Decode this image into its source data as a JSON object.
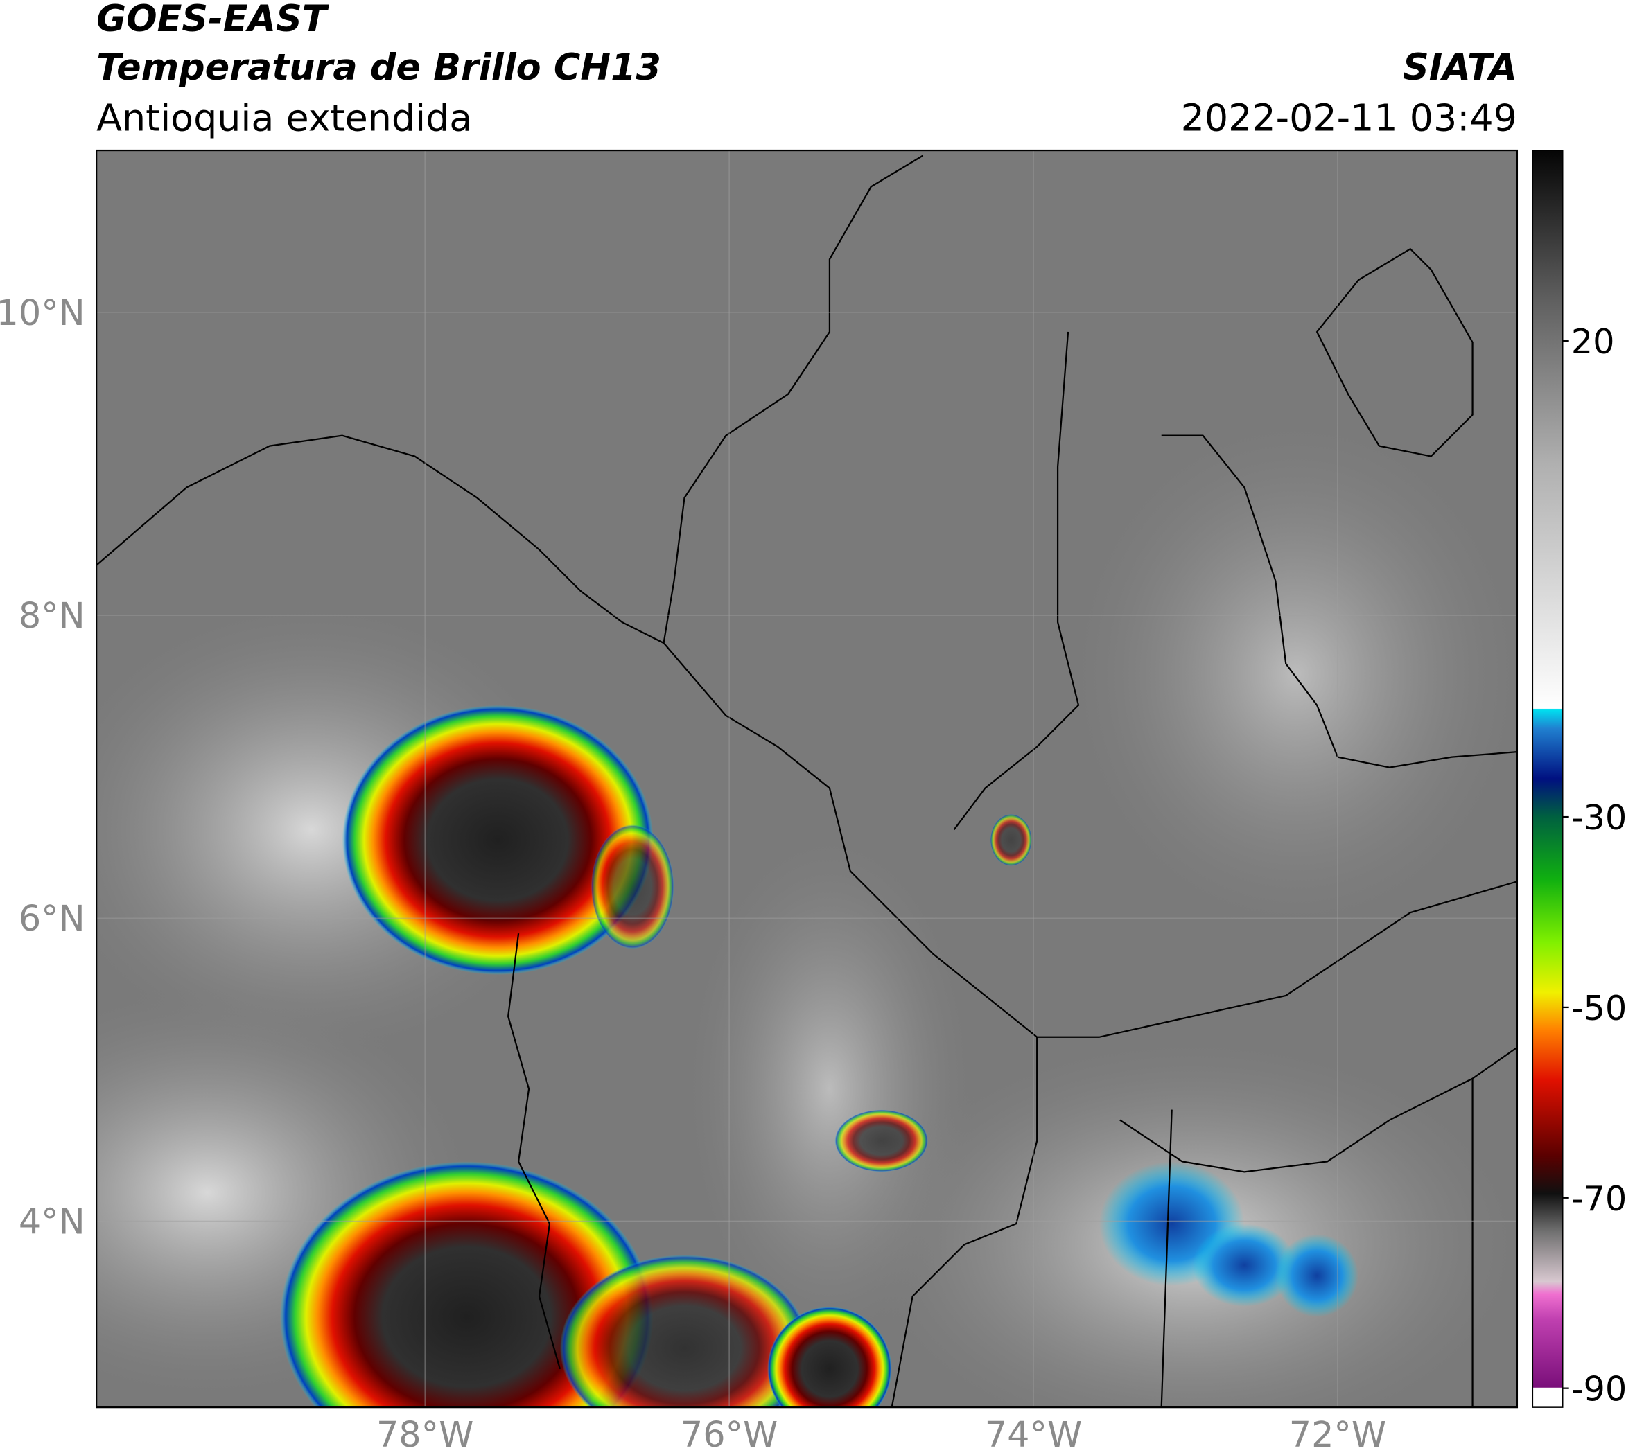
{
  "header": {
    "title": "GOES-EAST",
    "product": "Temperatura de Brillo CH13",
    "region": "Antioquia extendida",
    "agency": "SIATA",
    "datetime": "2022-02-11 03:49"
  },
  "map": {
    "lonlim": [
      -80.16,
      -70.82
    ],
    "latlim": [
      2.77,
      11.07
    ],
    "lonticks": [
      {
        "value": -78,
        "label": "78°W"
      },
      {
        "value": -76,
        "label": "76°W"
      },
      {
        "value": -74,
        "label": "74°W"
      },
      {
        "value": -72,
        "label": "72°W"
      }
    ],
    "latticks": [
      {
        "value": 4,
        "label": "4°N"
      },
      {
        "value": 6,
        "label": "6°N"
      },
      {
        "value": 8,
        "label": "8°N"
      },
      {
        "value": 10,
        "label": "10°N"
      }
    ],
    "grid": true
  },
  "colorbar": {
    "lim": [
      -92,
      40
    ],
    "ticks": [
      -90,
      -70,
      -50,
      -30,
      20
    ]
  }
}
